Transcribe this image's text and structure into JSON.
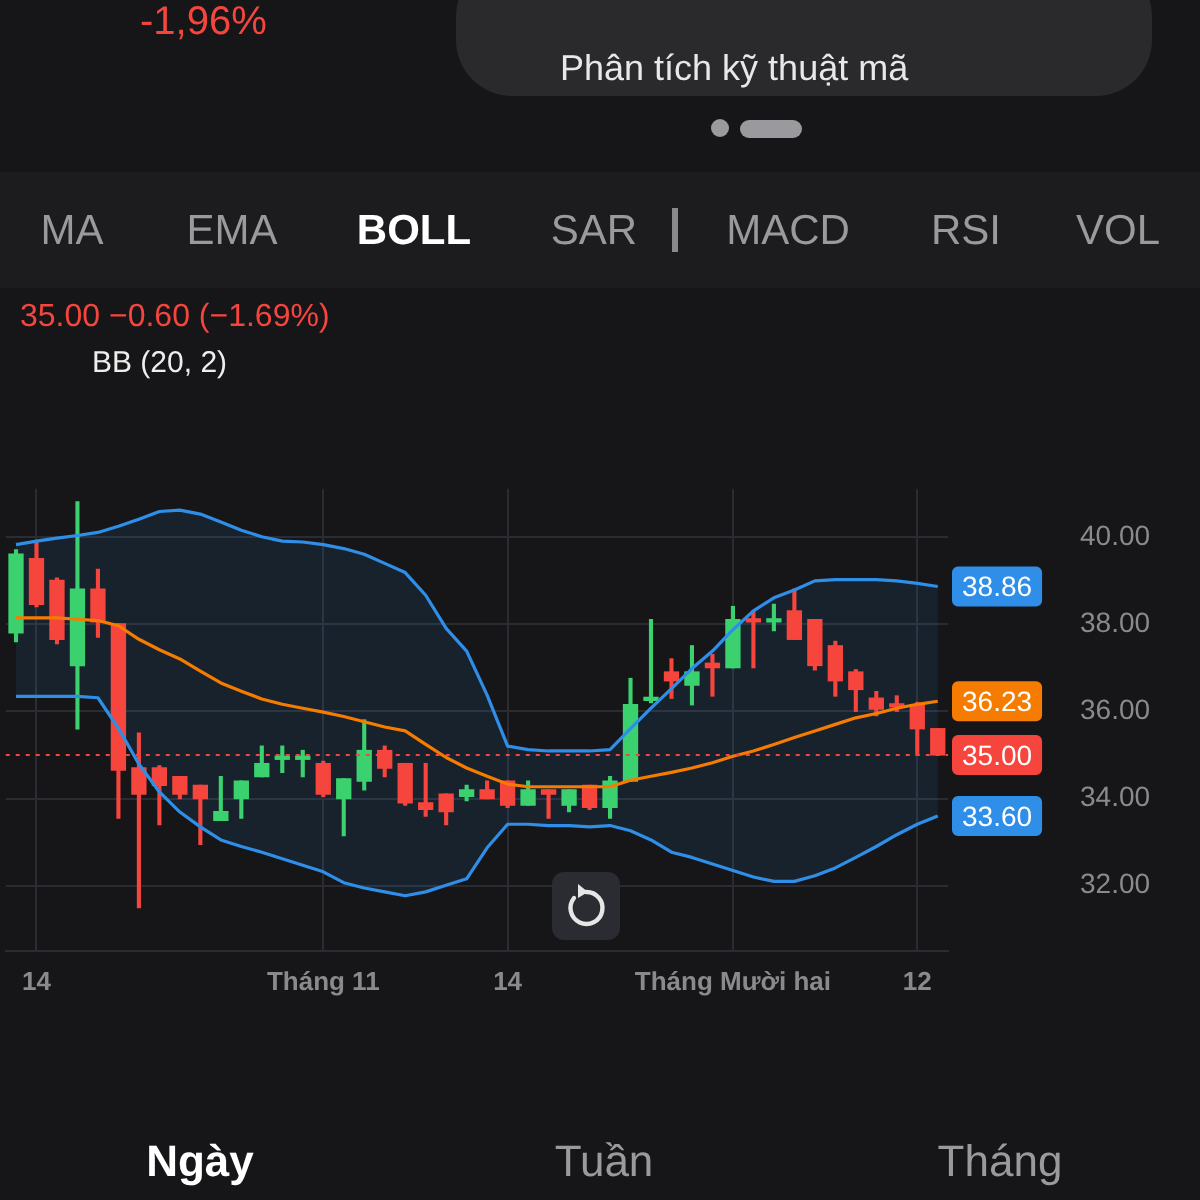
{
  "chart_data": {
    "type": "candlestick",
    "title": "35.00 −0.60 (−1.69%)",
    "subtitle": "BB (20, 2)",
    "categories": [
      null,
      "14",
      null,
      null,
      null,
      null,
      null,
      null,
      null,
      null,
      null,
      null,
      null,
      null,
      null,
      "Tháng 11",
      null,
      null,
      null,
      null,
      null,
      null,
      null,
      null,
      "14",
      null,
      null,
      null,
      null,
      null,
      null,
      null,
      null,
      null,
      null,
      "Tháng Mười hai",
      null,
      null,
      null,
      null,
      null,
      null,
      null,
      null,
      "12",
      null
    ],
    "ohlc": [
      [
        37.8,
        39.7,
        37.6,
        39.6
      ],
      [
        39.5,
        39.9,
        38.4,
        38.45
      ],
      [
        39.0,
        39.05,
        37.55,
        37.65
      ],
      [
        37.05,
        40.8,
        35.6,
        38.8
      ],
      [
        38.8,
        39.25,
        37.7,
        38.05
      ],
      [
        38.0,
        38.0,
        33.55,
        34.65
      ],
      [
        34.7,
        35.5,
        31.5,
        34.1
      ],
      [
        34.7,
        34.75,
        33.4,
        34.3
      ],
      [
        34.5,
        34.5,
        34.0,
        34.1
      ],
      [
        34.3,
        34.3,
        32.95,
        34.0
      ],
      [
        33.5,
        34.5,
        33.5,
        33.7
      ],
      [
        34.0,
        34.4,
        33.55,
        34.4
      ],
      [
        34.5,
        35.2,
        34.5,
        34.8
      ],
      [
        34.9,
        35.2,
        34.6,
        34.95
      ],
      [
        34.9,
        35.1,
        34.5,
        34.95
      ],
      [
        34.8,
        34.85,
        34.05,
        34.1
      ],
      [
        34.0,
        34.45,
        33.15,
        34.45
      ],
      [
        34.4,
        35.8,
        34.2,
        35.1
      ],
      [
        35.1,
        35.2,
        34.5,
        34.7
      ],
      [
        34.8,
        34.8,
        33.85,
        33.9
      ],
      [
        33.9,
        34.8,
        33.6,
        33.75
      ],
      [
        34.1,
        34.1,
        33.4,
        33.7
      ],
      [
        34.05,
        34.3,
        33.95,
        34.2
      ],
      [
        34.2,
        34.4,
        34.0,
        34.0
      ],
      [
        34.4,
        34.4,
        33.8,
        33.85
      ],
      [
        33.85,
        34.4,
        33.85,
        34.2
      ],
      [
        34.2,
        34.2,
        33.55,
        34.1
      ],
      [
        33.85,
        34.2,
        33.7,
        34.2
      ],
      [
        34.3,
        34.3,
        33.75,
        33.8
      ],
      [
        33.8,
        34.5,
        33.55,
        34.4
      ],
      [
        34.4,
        36.75,
        34.4,
        36.15
      ],
      [
        36.25,
        38.1,
        36.2,
        36.3
      ],
      [
        36.9,
        37.2,
        36.3,
        36.7
      ],
      [
        36.6,
        37.5,
        36.15,
        36.9
      ],
      [
        37.1,
        37.3,
        36.35,
        37.0
      ],
      [
        37.0,
        38.4,
        37.0,
        38.1
      ],
      [
        38.1,
        38.3,
        37.0,
        38.05
      ],
      [
        38.05,
        38.45,
        37.85,
        38.1
      ],
      [
        38.3,
        38.8,
        37.65,
        37.65
      ],
      [
        38.1,
        38.1,
        36.95,
        37.05
      ],
      [
        37.5,
        37.6,
        36.35,
        36.7
      ],
      [
        36.9,
        36.95,
        36.0,
        36.5
      ],
      [
        36.3,
        36.45,
        35.9,
        36.05
      ],
      [
        36.15,
        36.35,
        36.0,
        36.1
      ],
      [
        36.15,
        36.2,
        35.0,
        35.6
      ],
      [
        35.6,
        35.6,
        35.0,
        35.0
      ]
    ],
    "colors": [
      "#3bd16f",
      "#f5453d",
      "#f5453d",
      "#3bd16f",
      "#f5453d",
      "#f5453d",
      "#f5453d",
      "#f5453d",
      "#f5453d",
      "#f5453d",
      "#3bd16f",
      "#3bd16f",
      "#3bd16f",
      "#3bd16f",
      "#3bd16f",
      "#f5453d",
      "#3bd16f",
      "#3bd16f",
      "#f5453d",
      "#f5453d",
      "#f5453d",
      "#f5453d",
      "#3bd16f",
      "#f5453d",
      "#f5453d",
      "#3bd16f",
      "#f5453d",
      "#3bd16f",
      "#f5453d",
      "#3bd16f",
      "#3bd16f",
      "#3bd16f",
      "#f5453d",
      "#3bd16f",
      "#f5453d",
      "#3bd16f",
      "#f5453d",
      "#3bd16f",
      "#f5453d",
      "#f5453d",
      "#f5453d",
      "#f5453d",
      "#f5453d",
      "#f5453d",
      "#f5453d",
      "#f5453d"
    ],
    "series": [
      {
        "type": "line",
        "color": "#2f8fe8",
        "values": [
          39.82,
          39.9,
          39.97,
          40.03,
          40.1,
          40.24,
          40.4,
          40.58,
          40.61,
          40.52,
          40.34,
          40.15,
          40.0,
          39.9,
          39.88,
          39.82,
          39.73,
          39.6,
          39.39,
          39.18,
          38.66,
          37.9,
          37.38,
          36.37,
          35.2,
          35.12,
          35.09,
          35.09,
          35.09,
          35.12,
          35.6,
          36.07,
          36.52,
          36.98,
          37.38,
          37.87,
          38.3,
          38.6,
          38.78,
          38.99,
          39.02,
          39.02,
          39.02,
          38.99,
          38.93,
          38.86
        ],
        "value_labels": [
          null,
          null,
          null,
          null,
          null,
          null,
          null,
          null,
          null,
          null,
          null,
          null,
          null,
          null,
          null,
          null,
          null,
          null,
          null,
          null,
          null,
          null,
          null,
          null,
          null,
          null,
          null,
          null,
          null,
          null,
          null,
          null,
          null,
          null,
          null,
          null,
          null,
          null,
          null,
          null,
          null,
          null,
          null,
          null,
          null,
          "38.86"
        ]
      },
      {
        "type": "line",
        "color": "#f57c00",
        "upper": [
          39.82,
          39.9,
          39.97,
          40.03,
          40.1,
          40.24,
          40.4,
          40.58,
          40.61,
          40.52,
          40.34,
          40.15,
          40.0,
          39.9,
          39.88,
          39.82,
          39.73,
          39.6,
          39.39,
          39.18,
          38.66,
          37.9,
          37.38,
          36.37,
          35.2,
          35.12,
          35.09,
          35.09,
          35.09,
          35.12,
          35.6,
          36.07,
          36.52,
          36.98,
          37.38,
          37.87,
          38.3,
          38.6,
          38.78,
          38.99,
          39.02,
          39.02,
          39.02,
          38.99,
          38.93,
          38.86
        ],
        "lower": [
          36.34,
          36.34,
          36.34,
          36.34,
          36.31,
          35.61,
          34.79,
          34.15,
          33.69,
          33.35,
          33.05,
          32.9,
          32.77,
          32.62,
          32.47,
          32.32,
          32.07,
          31.95,
          31.86,
          31.77,
          31.86,
          32.01,
          32.16,
          32.87,
          33.41,
          33.41,
          33.38,
          33.38,
          33.35,
          33.38,
          33.26,
          33.05,
          32.77,
          32.65,
          32.5,
          32.35,
          32.2,
          32.1,
          32.1,
          32.23,
          32.41,
          32.65,
          32.9,
          33.17,
          33.41,
          33.6
        ],
        "values": [
          38.14,
          38.14,
          38.14,
          38.11,
          38.08,
          37.96,
          37.65,
          37.41,
          37.2,
          36.92,
          36.65,
          36.46,
          36.28,
          36.16,
          36.07,
          35.98,
          35.88,
          35.76,
          35.64,
          35.55,
          35.24,
          34.94,
          34.7,
          34.51,
          34.33,
          34.27,
          34.27,
          34.27,
          34.27,
          34.27,
          34.42,
          34.51,
          34.6,
          34.7,
          34.82,
          34.97,
          35.09,
          35.24,
          35.4,
          35.55,
          35.7,
          35.85,
          35.95,
          36.07,
          36.16,
          36.23
        ],
        "value_labels": [
          null,
          null,
          null,
          null,
          null,
          null,
          null,
          null,
          null,
          null,
          null,
          null,
          null,
          null,
          null,
          null,
          null,
          null,
          null,
          null,
          null,
          null,
          null,
          null,
          null,
          null,
          null,
          null,
          null,
          null,
          null,
          null,
          null,
          null,
          null,
          null,
          null,
          null,
          null,
          null,
          null,
          null,
          null,
          null,
          null,
          "36.23"
        ]
      },
      {
        "type": "line",
        "color": "#2f8fe8",
        "values": [
          36.34,
          36.34,
          36.34,
          36.34,
          36.31,
          35.61,
          34.79,
          34.15,
          33.69,
          33.35,
          33.05,
          32.9,
          32.77,
          32.62,
          32.47,
          32.32,
          32.07,
          31.95,
          31.86,
          31.77,
          31.86,
          32.01,
          32.16,
          32.87,
          33.41,
          33.41,
          33.38,
          33.38,
          33.35,
          33.38,
          33.26,
          33.05,
          32.77,
          32.65,
          32.5,
          32.35,
          32.2,
          32.1,
          32.1,
          32.23,
          32.41,
          32.65,
          32.9,
          33.17,
          33.41,
          33.6
        ],
        "value_labels": [
          null,
          null,
          null,
          null,
          null,
          null,
          null,
          null,
          null,
          null,
          null,
          null,
          null,
          null,
          null,
          null,
          null,
          null,
          null,
          null,
          null,
          null,
          null,
          null,
          null,
          null,
          null,
          null,
          null,
          null,
          null,
          null,
          null,
          null,
          null,
          null,
          null,
          null,
          null,
          null,
          null,
          null,
          null,
          null,
          null,
          "33.60"
        ]
      }
    ],
    "ylim": [
      30.5,
      41.1
    ],
    "yticks": [
      {
        "value": 32,
        "label": "32.00"
      },
      {
        "value": 34,
        "label": "34.00"
      },
      {
        "value": 36,
        "label": "36.00"
      },
      {
        "value": 38,
        "label": "38.00"
      },
      {
        "value": 40,
        "label": "40.00"
      }
    ],
    "ref_lines": [
      {
        "axis": "y",
        "value": 35,
        "label": "35.00",
        "color": "#f5453d",
        "line_style": "dotted"
      }
    ],
    "grid": true,
    "legend": false,
    "annotations": [
      "-1,96%",
      "Phân tích kỹ thuật mã",
      "MA",
      "EMA",
      "BOLL",
      "SAR",
      "MACD",
      "RSI",
      "VOL",
      "Ngày",
      "Tuần",
      "Tháng"
    ]
  }
}
